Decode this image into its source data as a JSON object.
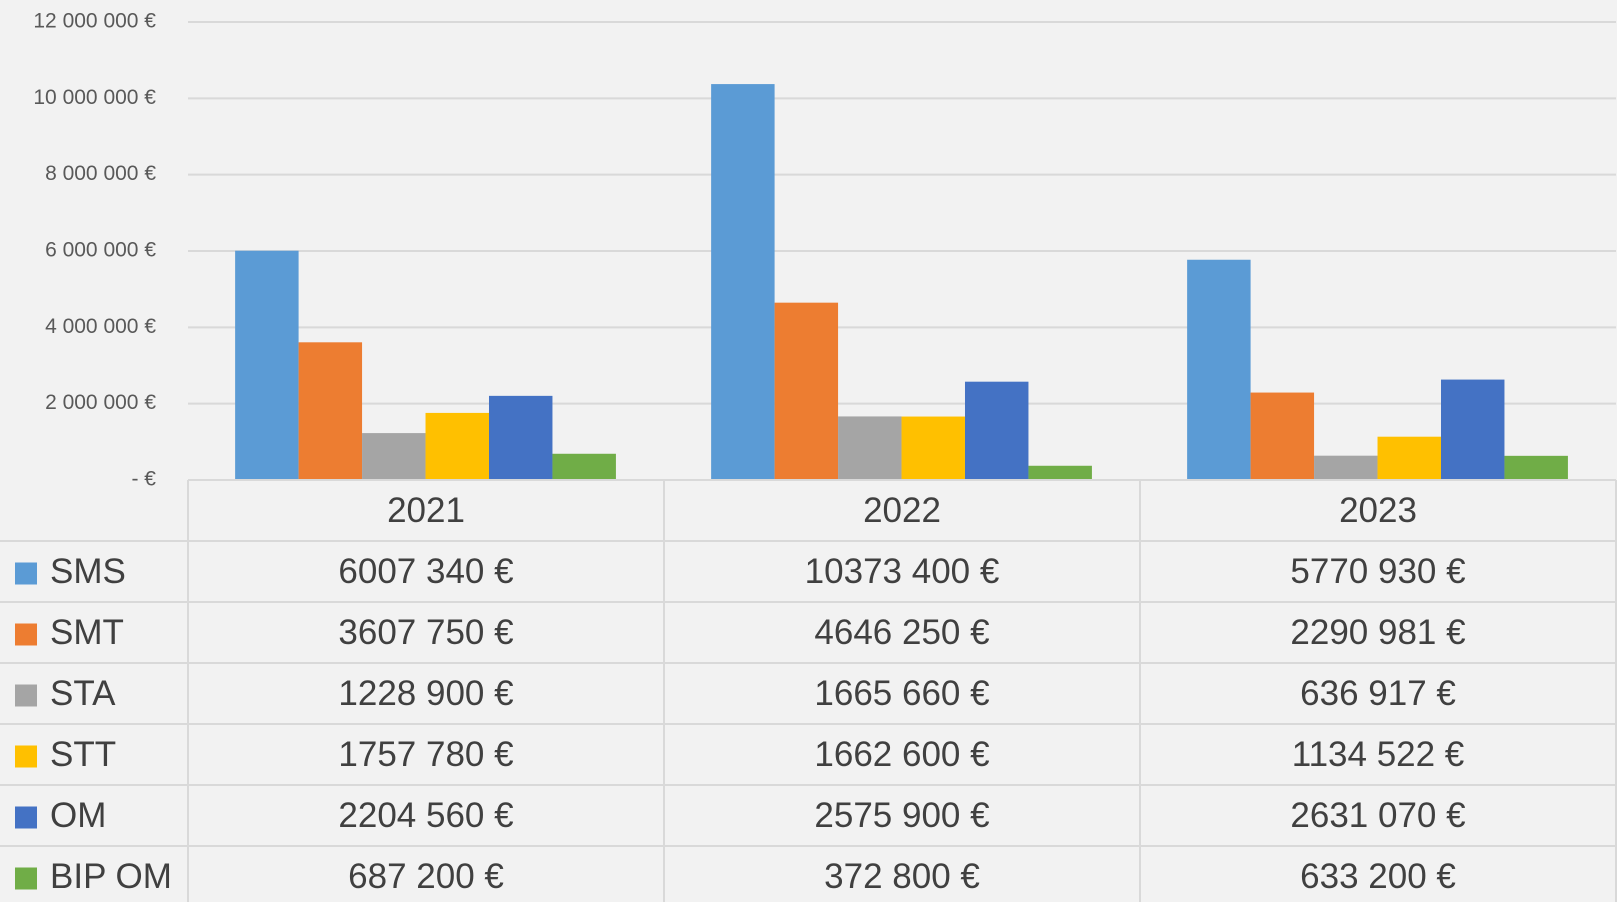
{
  "chart_data": {
    "type": "bar",
    "categories": [
      "2021",
      "2022",
      "2023"
    ],
    "series": [
      {
        "name": "SMS",
        "color": "#5b9bd5",
        "values": [
          6007340,
          10373400,
          5770930
        ],
        "value_labels": [
          "6007 340 €",
          "10373 400 €",
          "5770 930 €"
        ]
      },
      {
        "name": "SMT",
        "color": "#ed7d31",
        "values": [
          3607750,
          4646250,
          2290981
        ],
        "value_labels": [
          "3607 750 €",
          "4646 250 €",
          "2290 981 €"
        ]
      },
      {
        "name": "STA",
        "color": "#a5a5a5",
        "values": [
          1228900,
          1665660,
          636917
        ],
        "value_labels": [
          "1228 900 €",
          "1665 660 €",
          "636 917 €"
        ]
      },
      {
        "name": "STT",
        "color": "#ffc000",
        "values": [
          1757780,
          1662600,
          1134522
        ],
        "value_labels": [
          "1757 780 €",
          "1662 600 €",
          "1134 522 €"
        ]
      },
      {
        "name": "OM",
        "color": "#4472c4",
        "values": [
          2204560,
          2575900,
          2631070
        ],
        "value_labels": [
          "2204 560 €",
          "2575 900 €",
          "2631 070 €"
        ]
      },
      {
        "name": "BIP OM",
        "color": "#70ad47",
        "values": [
          687200,
          372800,
          633200
        ],
        "value_labels": [
          "687 200 €",
          "372 800 €",
          "633 200 €"
        ]
      }
    ],
    "ylim": [
      0,
      12000000
    ],
    "yticks": [
      {
        "value": 0,
        "label": "- €"
      },
      {
        "value": 2000000,
        "label": "2 000 000 €"
      },
      {
        "value": 4000000,
        "label": "4 000 000 €"
      },
      {
        "value": 6000000,
        "label": "6 000 000 €"
      },
      {
        "value": 8000000,
        "label": "8 000 000 €"
      },
      {
        "value": 10000000,
        "label": "10 000 000 €"
      },
      {
        "value": 12000000,
        "label": "12 000 000 €"
      }
    ],
    "grid": true
  }
}
